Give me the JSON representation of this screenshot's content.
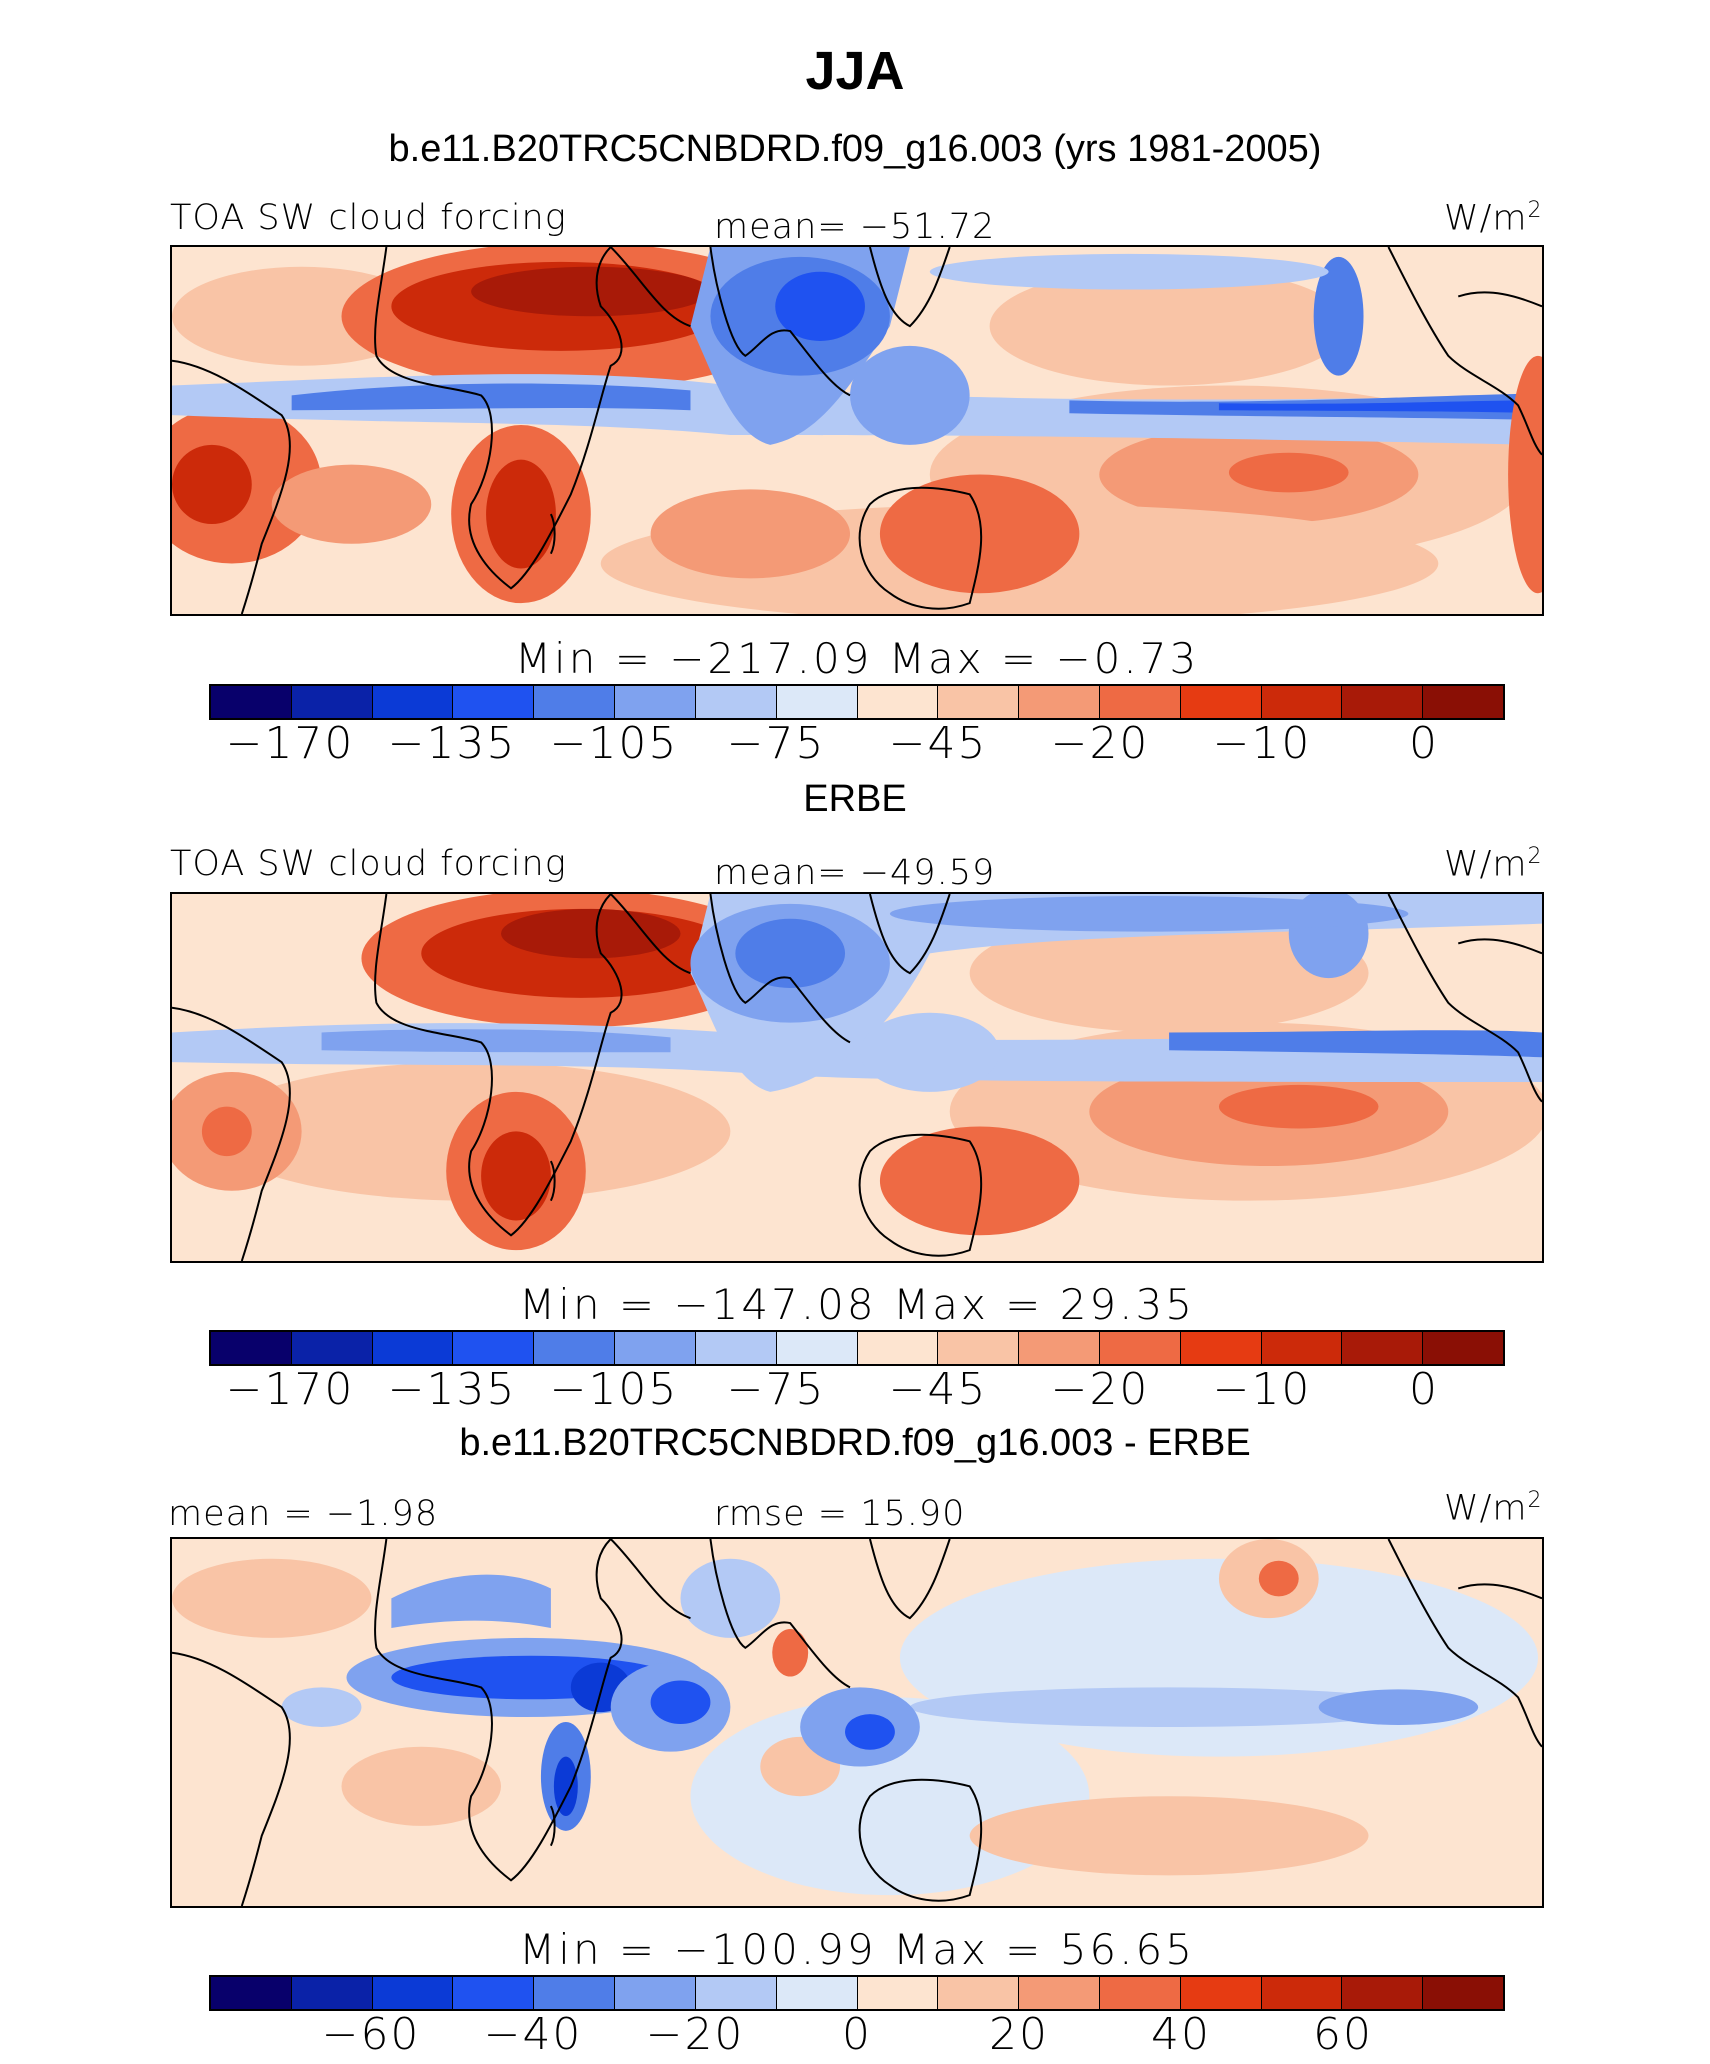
{
  "title": "JJA",
  "colors": [
    "#08006b",
    "#0a22a8",
    "#0b3ad6",
    "#1f52f0",
    "#4f7de8",
    "#7fa2ef",
    "#b3c9f5",
    "#dce8f8",
    "#fde4d0",
    "#f9c4a6",
    "#f49a76",
    "#ee6a44",
    "#e63b12",
    "#cc2a0a",
    "#a81a08",
    "#8a0f05"
  ],
  "panels": [
    {
      "subtitle": "b.e11.B20TRC5CNBDRD.f09_g16.003 (yrs 1981-2005)",
      "left_label": "TOA SW cloud forcing",
      "center_label": "mean= −51.72",
      "units_base": "W/m",
      "units_sup": "2",
      "minmax": "Min  =  −217.09  Max  =    −0.73",
      "ticks": [
        "−170",
        "−135",
        "−105",
        "−75",
        "−45",
        "−20",
        "−10",
        "0"
      ]
    },
    {
      "subtitle": "ERBE",
      "left_label": "TOA SW cloud forcing",
      "center_label": "mean= −49.59",
      "units_base": "W/m",
      "units_sup": "2",
      "minmax": "Min  =  −147.08  Max  =    29.35",
      "ticks": [
        "−170",
        "−135",
        "−105",
        "−75",
        "−45",
        "−20",
        "−10",
        "0"
      ]
    },
    {
      "subtitle": "b.e11.B20TRC5CNBDRD.f09_g16.003 - ERBE",
      "left_label": "mean =   −1.98",
      "center_label": "rmse =   15.90",
      "units_base": "W/m",
      "units_sup": "2",
      "minmax": "Min  =  −100.99  Max  =    56.65",
      "ticks": [
        "−60",
        "−40",
        "−20",
        "0",
        "20",
        "40",
        "60"
      ]
    }
  ]
}
